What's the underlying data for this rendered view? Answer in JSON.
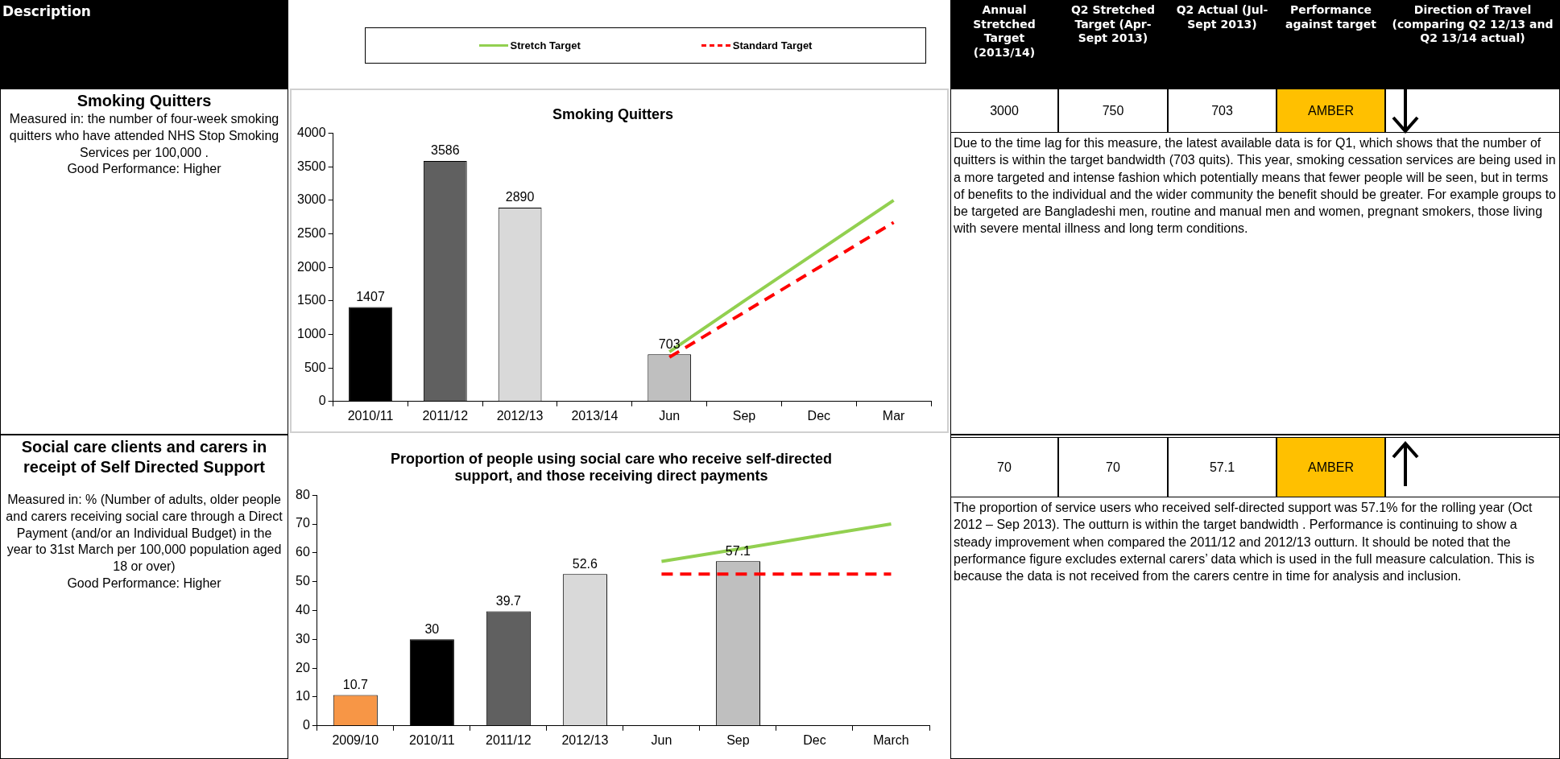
{
  "chart_data": [
    {
      "type": "other",
      "annotations": [
        "Description",
        "Annual Stretched Target (2013/14)",
        "Q2  Stretched Target (Apr-Sept 2013)",
        "Q2  Actual (Jul-Sept 2013)",
        "Performance against target",
        "Direction of Travel (comparing Q2 12/13 and Q2 13/14 actual)",
        "Smoking Quitters",
        "Measured in:  the number of four-week smoking quitters who have attended NHS Stop Smoking Services per 100,000 .\nGood Performance: Higher",
        "3000",
        "750",
        "703",
        "AMBER",
        "Due to the time lag for this measure, the latest available data is for Q1, which shows that the number of quitters is within the target bandwidth (703 quits). This year, smoking cessation services are being used in a more targeted and intense fashion which potentially means that fewer people will be seen, but in terms of benefits to the individual and the wider community the benefit should be greater. For example groups to be targeted are Bangladeshi men, routine and manual men and women, pregnant smokers, those living with severe mental illness and long term conditions.",
        "Social care clients and carers in receipt of Self Directed Support",
        "Measured in: % (Number of adults, older people and carers receiving social care through a Direct Payment (and/or an Individual Budget) in the year to 31st March per 100,000 population aged 18 or over)\nGood Performance: Higher",
        "70",
        "70",
        "57.1",
        "AMBER",
        "The proportion of service users who received self-directed support was 57.1% for the rolling year (Oct 2012 – Sep 2013). The outturn is within the target bandwidth . Performance is continuing to show a steady improvement when compared the 2011/12 and 2012/13 outturn. It should be noted that the performance figure excludes external carers’ data which is used in the full measure calculation. This is because the data is not received from the carers centre in time for analysis and inclusion."
      ]
    },
    {
      "type": "bar",
      "title": "Smoking Quitters",
      "categories": [
        "2010/11",
        "2011/12",
        "2012/13",
        "2013/14",
        "Jun",
        "Sep",
        "Dec",
        "Mar"
      ],
      "ylim": [
        0,
        4000
      ],
      "yticks": [
        0,
        500,
        1000,
        1500,
        2000,
        2500,
        3000,
        3500,
        4000
      ],
      "grid": false,
      "legend": "top",
      "series": [
        {
          "type": "bar",
          "colors": [
            "#000000",
            "#606060",
            "#d9d9d9",
            "#ffffff",
            "#bfbfbf",
            "#ffffff",
            "#ffffff",
            "#ffffff"
          ],
          "values": [
            1407,
            3586,
            2890,
            null,
            703,
            null,
            null,
            null
          ],
          "value_labels": [
            "1407",
            "3586",
            "2890",
            null,
            "703",
            null,
            null,
            null
          ]
        },
        {
          "type": "line",
          "name": "Stretch Target",
          "color": "#92d050",
          "line_style": "solid",
          "values": [
            null,
            null,
            null,
            null,
            740,
            1500,
            2250,
            3000
          ]
        },
        {
          "type": "line",
          "name": "Standard Target",
          "color": "#ff0000",
          "line_style": "dashed",
          "values": [
            null,
            null,
            null,
            null,
            660,
            1330,
            2000,
            2670
          ]
        }
      ]
    },
    {
      "type": "bar",
      "title": "Proportion of people using social care who receive self-directed\nsupport, and those receiving direct payments",
      "categories": [
        "2009/10",
        "2010/11",
        "2011/12",
        "2012/13",
        "Jun",
        "Sep",
        "Dec",
        "March"
      ],
      "ylim": [
        0,
        80
      ],
      "yticks": [
        0,
        10,
        20,
        30,
        40,
        50,
        60,
        70,
        80
      ],
      "grid": false,
      "series": [
        {
          "type": "bar",
          "colors": [
            "#f79646",
            "#000000",
            "#606060",
            "#d9d9d9",
            "#ffffff",
            "#bfbfbf",
            "#ffffff",
            "#ffffff"
          ],
          "values": [
            10.7,
            30,
            39.7,
            52.6,
            null,
            57.1,
            null,
            null
          ],
          "value_labels": [
            "10.7",
            "30",
            "39.7",
            "52.6",
            null,
            "57.1",
            null,
            null
          ]
        },
        {
          "type": "line",
          "color": "#92d050",
          "line_style": "solid",
          "values": [
            null,
            null,
            null,
            null,
            57,
            61.3,
            65.7,
            70
          ]
        },
        {
          "type": "line",
          "color": "#ff0000",
          "line_style": "dashed",
          "values": [
            null,
            null,
            null,
            null,
            52.6,
            52.6,
            52.6,
            52.6
          ]
        }
      ]
    }
  ]
}
